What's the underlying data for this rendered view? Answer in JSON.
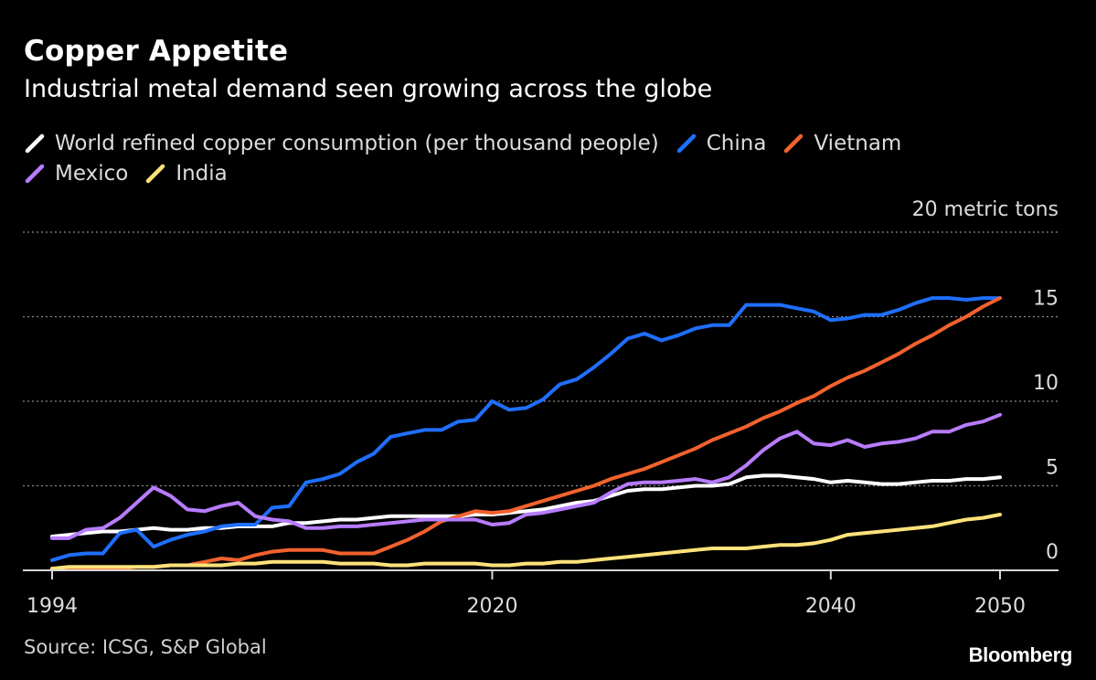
{
  "title": "Copper Appetite",
  "subtitle": "Industrial metal demand seen growing across the globe",
  "source": "Source: ICSG, S&P Global",
  "brand": "Bloomberg",
  "colors": {
    "background": "#000000",
    "world": "#ffffff",
    "china": "#1f6fff",
    "vietnam": "#f2622e",
    "mexico": "#b77cff",
    "india": "#ffe27a"
  },
  "chart_data": {
    "type": "line",
    "title": "Copper Appetite",
    "subtitle": "Industrial metal demand seen growing across the globe",
    "ylabel": "20 metric tons",
    "unit_label": "20 metric tons",
    "ylim": [
      0,
      20
    ],
    "xlim": [
      1994,
      2050
    ],
    "yticks": [
      0,
      5,
      10,
      15
    ],
    "xticks": [
      1994,
      2020,
      2040,
      2050
    ],
    "grid": true,
    "legend_position": "top",
    "x": [
      1994,
      1995,
      1996,
      1997,
      1998,
      1999,
      2000,
      2001,
      2002,
      2003,
      2004,
      2005,
      2006,
      2007,
      2008,
      2009,
      2010,
      2011,
      2012,
      2013,
      2014,
      2015,
      2016,
      2017,
      2018,
      2019,
      2020,
      2021,
      2022,
      2023,
      2024,
      2025,
      2026,
      2027,
      2028,
      2029,
      2030,
      2031,
      2032,
      2033,
      2034,
      2035,
      2036,
      2037,
      2038,
      2039,
      2040,
      2041,
      2042,
      2043,
      2044,
      2045,
      2046,
      2047,
      2048,
      2049,
      2050
    ],
    "series": [
      {
        "name": "World refined copper consumption (per thousand people)",
        "color": "#ffffff",
        "values": [
          2.0,
          2.1,
          2.2,
          2.3,
          2.3,
          2.4,
          2.5,
          2.4,
          2.4,
          2.5,
          2.5,
          2.6,
          2.6,
          2.6,
          2.8,
          2.8,
          2.9,
          3.0,
          3.0,
          3.1,
          3.2,
          3.2,
          3.2,
          3.2,
          3.2,
          3.3,
          3.3,
          3.4,
          3.5,
          3.6,
          3.8,
          4.0,
          4.1,
          4.4,
          4.7,
          4.8,
          4.8,
          4.9,
          5.0,
          5.0,
          5.1,
          5.5,
          5.6,
          5.6,
          5.5,
          5.4,
          5.2,
          5.3,
          5.2,
          5.1,
          5.1,
          5.2,
          5.3,
          5.3,
          5.4,
          5.4,
          5.5
        ]
      },
      {
        "name": "China",
        "color": "#1f6fff",
        "values": [
          0.6,
          0.9,
          1.0,
          1.0,
          2.2,
          2.4,
          1.4,
          1.8,
          2.1,
          2.3,
          2.6,
          2.7,
          2.7,
          3.7,
          3.8,
          5.2,
          5.4,
          5.7,
          6.4,
          6.9,
          7.9,
          8.1,
          8.3,
          8.3,
          8.8,
          8.9,
          10.0,
          9.5,
          9.6,
          10.1,
          11.0,
          11.3,
          12.0,
          12.8,
          13.7,
          14.0,
          13.6,
          13.9,
          14.3,
          14.5,
          14.5,
          15.7,
          15.7,
          15.7,
          15.5,
          15.3,
          14.8,
          14.9,
          15.1,
          15.1,
          15.4,
          15.8,
          16.1,
          16.1,
          16.0,
          16.1,
          16.1
        ]
      },
      {
        "name": "Vietnam",
        "color": "#f2622e",
        "values": [
          0.1,
          0.1,
          0.1,
          0.1,
          0.1,
          0.2,
          0.2,
          0.3,
          0.3,
          0.5,
          0.7,
          0.6,
          0.9,
          1.1,
          1.2,
          1.2,
          1.2,
          1.0,
          1.0,
          1.0,
          1.4,
          1.8,
          2.3,
          2.9,
          3.2,
          3.5,
          3.4,
          3.5,
          3.8,
          4.1,
          4.4,
          4.7,
          5.0,
          5.4,
          5.7,
          6.0,
          6.4,
          6.8,
          7.2,
          7.7,
          8.1,
          8.5,
          9.0,
          9.4,
          9.9,
          10.3,
          10.9,
          11.4,
          11.8,
          12.3,
          12.8,
          13.4,
          13.9,
          14.5,
          15.0,
          15.6,
          16.1
        ]
      },
      {
        "name": "Mexico",
        "color": "#b77cff",
        "values": [
          1.9,
          1.9,
          2.4,
          2.5,
          3.1,
          4.0,
          4.9,
          4.4,
          3.6,
          3.5,
          3.8,
          4.0,
          3.2,
          3.0,
          2.9,
          2.5,
          2.5,
          2.6,
          2.6,
          2.7,
          2.8,
          2.9,
          3.0,
          3.0,
          3.0,
          3.0,
          2.7,
          2.8,
          3.3,
          3.4,
          3.6,
          3.8,
          4.0,
          4.6,
          5.1,
          5.2,
          5.2,
          5.3,
          5.4,
          5.2,
          5.5,
          6.2,
          7.1,
          7.8,
          8.2,
          7.5,
          7.4,
          7.7,
          7.3,
          7.5,
          7.6,
          7.8,
          8.2,
          8.2,
          8.6,
          8.8,
          9.2
        ]
      },
      {
        "name": "India",
        "color": "#ffe27a",
        "values": [
          0.1,
          0.2,
          0.2,
          0.2,
          0.2,
          0.2,
          0.2,
          0.3,
          0.3,
          0.3,
          0.3,
          0.4,
          0.4,
          0.5,
          0.5,
          0.5,
          0.5,
          0.4,
          0.4,
          0.4,
          0.3,
          0.3,
          0.4,
          0.4,
          0.4,
          0.4,
          0.3,
          0.3,
          0.4,
          0.4,
          0.5,
          0.5,
          0.6,
          0.7,
          0.8,
          0.9,
          1.0,
          1.1,
          1.2,
          1.3,
          1.3,
          1.3,
          1.4,
          1.5,
          1.5,
          1.6,
          1.8,
          2.1,
          2.2,
          2.3,
          2.4,
          2.5,
          2.6,
          2.8,
          3.0,
          3.1,
          3.3
        ]
      }
    ]
  }
}
